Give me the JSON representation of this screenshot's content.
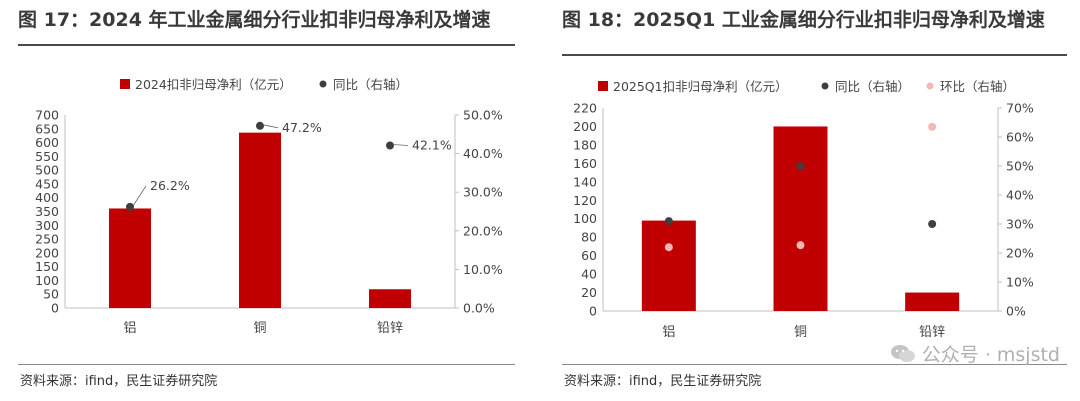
{
  "figures": [
    {
      "title": "图 17：2024 年工业金属细分行业扣非归母净利及增速",
      "source": "资料来源：ifind，民生证券研究院"
    },
    {
      "title": "图 18：2025Q1 工业金属细分行业扣非归母净利及增速",
      "source": "资料来源：ifind，民生证券研究院"
    }
  ],
  "watermark": {
    "text": "公众号 · msjstd",
    "icon": "wechat-icon"
  },
  "colors": {
    "bar": "#c00000",
    "yoy": "#3f3f3f",
    "qoq": "#f4b6b6",
    "axis": "#bfbfbf"
  },
  "chart_data": [
    {
      "type": "bar",
      "categories": [
        "铝",
        "铜",
        "铅锌"
      ],
      "series": [
        {
          "name": "2024扣非归母净利（亿元）",
          "kind": "bar",
          "axis": "left",
          "values": [
            361,
            636,
            68
          ]
        },
        {
          "name": "同比（右轴）",
          "kind": "scatter",
          "axis": "right",
          "values": [
            26.2,
            47.2,
            42.1
          ],
          "labels": [
            "26.2%",
            "47.2%",
            "42.1%"
          ]
        }
      ],
      "yticks_left": [
        "0",
        "50",
        "100",
        "150",
        "200",
        "250",
        "300",
        "350",
        "400",
        "450",
        "500",
        "550",
        "600",
        "650",
        "700"
      ],
      "yticks_right": [
        "0.0%",
        "10.0%",
        "20.0%",
        "30.0%",
        "40.0%",
        "50.0%"
      ],
      "ylim_left": [
        0,
        700
      ],
      "ylim_right": [
        0,
        50
      ],
      "grid": false,
      "legend_position": "top"
    },
    {
      "type": "bar",
      "categories": [
        "铝",
        "铜",
        "铅锌"
      ],
      "series": [
        {
          "name": "2025Q1扣非归母净利（亿元）",
          "kind": "bar",
          "axis": "left",
          "values": [
            98,
            200,
            20
          ]
        },
        {
          "name": "同比（右轴）",
          "kind": "scatter",
          "axis": "right",
          "values": [
            31,
            50,
            30
          ]
        },
        {
          "name": "环比（右轴）",
          "kind": "scatter",
          "axis": "right",
          "values": [
            22,
            22.7,
            63.5
          ]
        }
      ],
      "yticks_left": [
        "0",
        "20",
        "40",
        "60",
        "80",
        "100",
        "120",
        "140",
        "160",
        "180",
        "200",
        "220"
      ],
      "yticks_right": [
        "0%",
        "10%",
        "20%",
        "30%",
        "40%",
        "50%",
        "60%",
        "70%"
      ],
      "ylim_left": [
        0,
        220
      ],
      "ylim_right": [
        0,
        70
      ],
      "grid": false,
      "legend_position": "top"
    }
  ]
}
